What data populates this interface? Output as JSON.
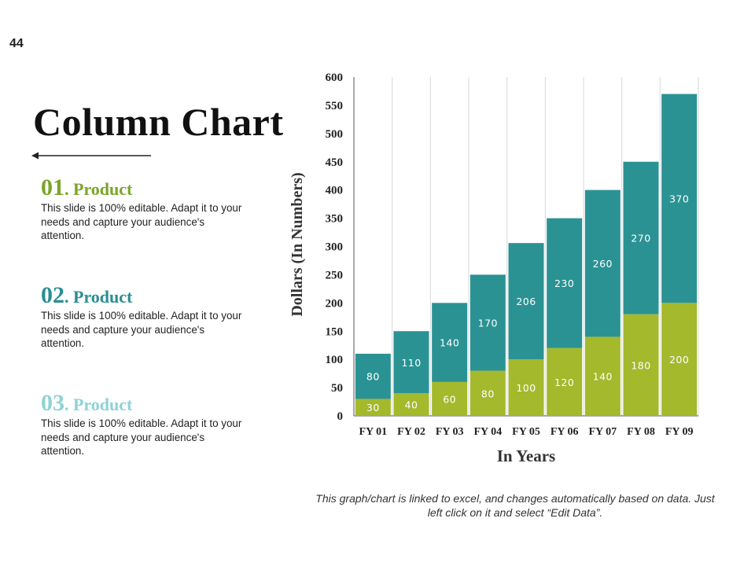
{
  "slide": {
    "page_number": "44",
    "title": "Column Chart",
    "note": "This graph/chart is linked to excel, and changes automatically based on data. Just left click on it and select “Edit Data”."
  },
  "products": [
    {
      "number": "01",
      "label": ". Product",
      "color": "#7aa52a",
      "description": "This slide is 100% editable. Adapt it to your needs and capture your audience's attention."
    },
    {
      "number": "02",
      "label": ". Product",
      "color": "#2a8e94",
      "description": "This slide is 100% editable. Adapt it to your needs and capture your audience's attention."
    },
    {
      "number": "03",
      "label": ". Product",
      "color": "#8fd2d6",
      "description": "This slide is 100% editable. Adapt it to your needs and capture your audience's attention."
    }
  ],
  "chart_data": {
    "type": "bar",
    "stacked": true,
    "categories": [
      "FY 01",
      "FY 02",
      "FY 03",
      "FY 04",
      "FY 05",
      "FY 06",
      "FY 07",
      "FY 08",
      "FY 09"
    ],
    "series": [
      {
        "color": "#a4b92c",
        "values": [
          30,
          40,
          60,
          80,
          100,
          120,
          140,
          180,
          200
        ]
      },
      {
        "color": "#2b9294",
        "values": [
          80,
          110,
          140,
          170,
          206,
          230,
          260,
          270,
          370
        ]
      }
    ],
    "xlabel": "In Years",
    "ylabel": "Dollars (In Numbers)",
    "ylim": [
      0,
      600
    ],
    "yticks": [
      "0",
      "50",
      "100",
      "150",
      "200",
      "250",
      "300",
      "350",
      "400",
      "450",
      "500",
      "550",
      "600"
    ],
    "grid": "vertical"
  }
}
